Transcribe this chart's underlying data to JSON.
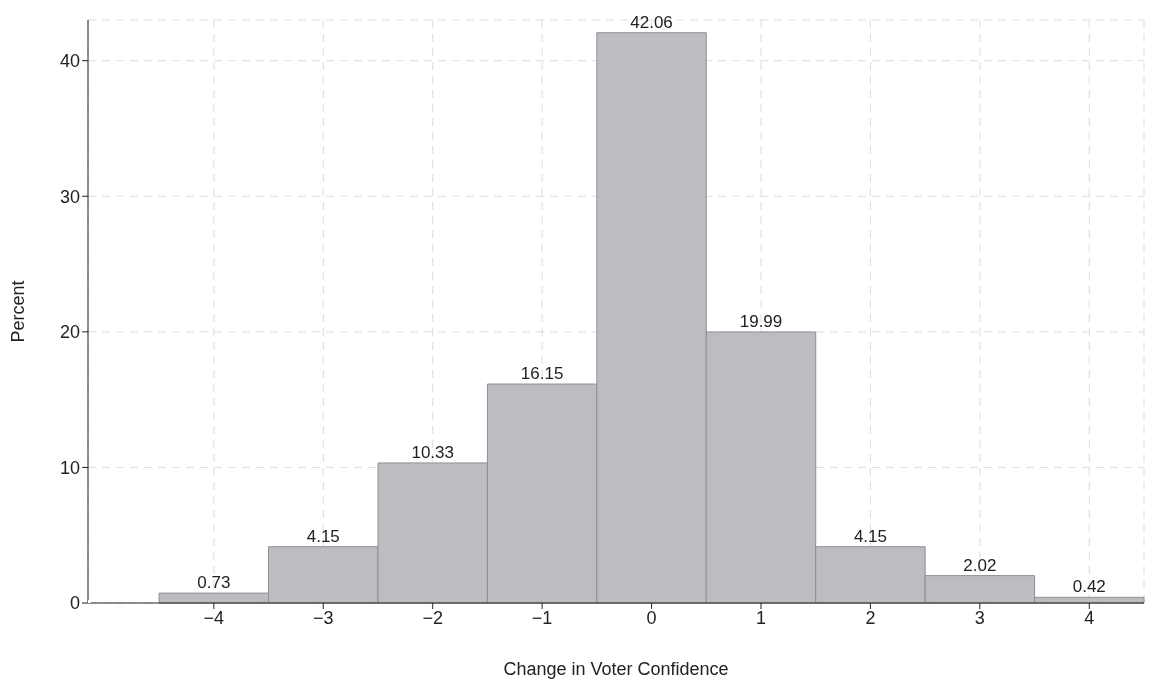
{
  "chart_data": {
    "type": "histogram",
    "xlabel": "Change in Voter Confidence",
    "ylabel": "Percent",
    "bins": [
      -4.5,
      -3.5,
      -2.5,
      -1.5,
      -0.5,
      0.5,
      1.5,
      2.5,
      3.5,
      4.5
    ],
    "values": [
      0.73,
      4.15,
      10.33,
      16.15,
      42.06,
      19.99,
      4.15,
      2.02,
      0.42
    ],
    "color": "#bcbdc1",
    "data_labels": true,
    "xlim": [
      -5.15,
      4.5
    ],
    "xticks": [
      {
        "value": -4,
        "label": "−4"
      },
      {
        "value": -3,
        "label": "−3"
      },
      {
        "value": -2,
        "label": "−2"
      },
      {
        "value": -1,
        "label": "−1"
      },
      0,
      1,
      2,
      3,
      4
    ],
    "ylim": [
      0,
      43
    ],
    "yticks": [
      0,
      10,
      20,
      30,
      40
    ],
    "grid": true
  }
}
